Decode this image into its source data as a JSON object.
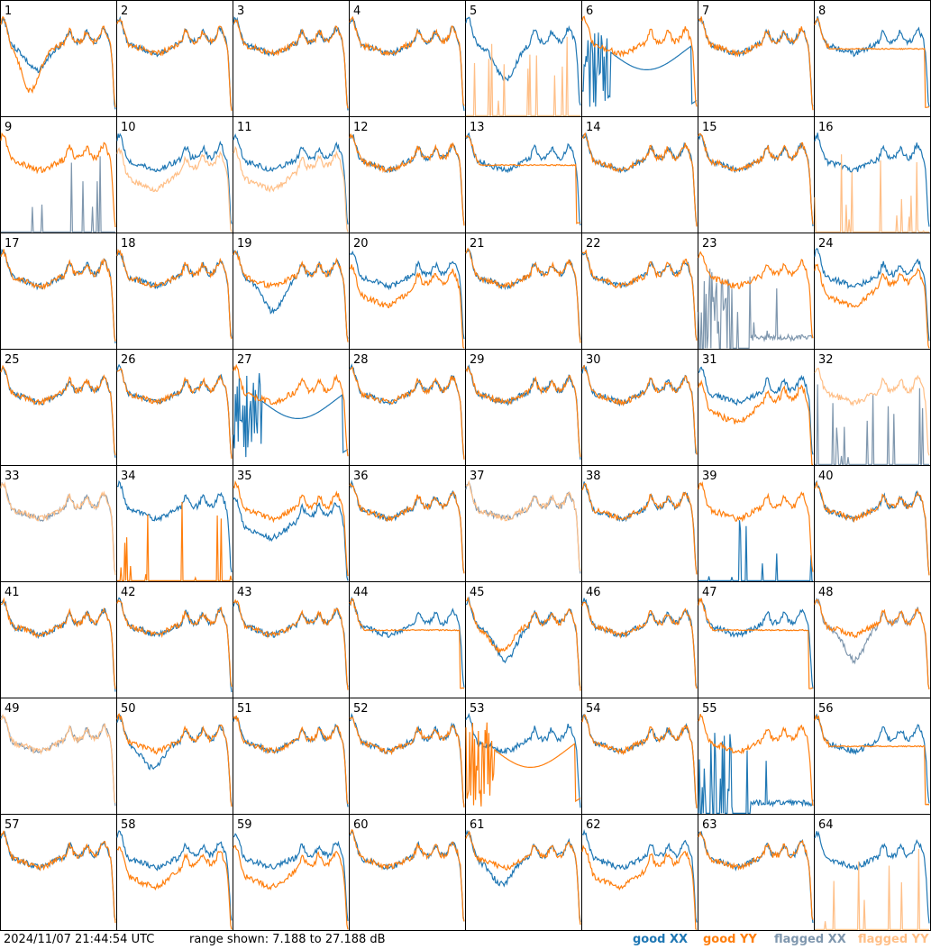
{
  "footer": {
    "timestamp": "2024/11/07 21:44:54 UTC",
    "range_text": "range shown: 7.188 to 27.188 dB"
  },
  "legend": [
    {
      "label": "good XX",
      "color": "#1f77b4"
    },
    {
      "label": "good YY",
      "color": "#ff7f0e"
    },
    {
      "label": "flagged XX",
      "color": "#7f97ae"
    },
    {
      "label": "flagged YY",
      "color": "#ffbf87"
    }
  ],
  "chart_data": {
    "type": "line",
    "grid": "8x8 small multiples",
    "ylim": [
      7.188,
      27.188
    ],
    "yunit": "dB",
    "panels": [
      {
        "id": "1",
        "xx": "good",
        "yy": "good",
        "xx_shape": "dip_shallow",
        "yy_shape": "dip"
      },
      {
        "id": "2",
        "xx": "good",
        "yy": "good",
        "xx_shape": "normal",
        "yy_shape": "normal"
      },
      {
        "id": "3",
        "xx": "good",
        "yy": "good",
        "xx_shape": "normal",
        "yy_shape": "normal"
      },
      {
        "id": "4",
        "xx": "good",
        "yy": "good",
        "xx_shape": "normal",
        "yy_shape": "normal"
      },
      {
        "id": "5",
        "xx": "good",
        "yy": "flagged",
        "xx_shape": "dip_mid",
        "yy_shape": "spikes"
      },
      {
        "id": "6",
        "xx": "good",
        "yy": "good",
        "xx_shape": "dead",
        "yy_shape": "normal"
      },
      {
        "id": "7",
        "xx": "good",
        "yy": "good",
        "xx_shape": "normal",
        "yy_shape": "normal"
      },
      {
        "id": "8",
        "xx": "good",
        "yy": "good",
        "xx_shape": "normal",
        "yy_shape": "flat"
      },
      {
        "id": "9",
        "xx": "flagged",
        "yy": "good",
        "xx_shape": "spikes",
        "yy_shape": "normal"
      },
      {
        "id": "10",
        "xx": "good",
        "yy": "flagged",
        "xx_shape": "normal",
        "yy_shape": "low"
      },
      {
        "id": "11",
        "xx": "good",
        "yy": "flagged",
        "xx_shape": "normal",
        "yy_shape": "low"
      },
      {
        "id": "12",
        "xx": "good",
        "yy": "good",
        "xx_shape": "normal",
        "yy_shape": "normal"
      },
      {
        "id": "13",
        "xx": "good",
        "yy": "good",
        "xx_shape": "normal",
        "yy_shape": "flat"
      },
      {
        "id": "14",
        "xx": "good",
        "yy": "good",
        "xx_shape": "normal",
        "yy_shape": "normal"
      },
      {
        "id": "15",
        "xx": "good",
        "yy": "good",
        "xx_shape": "normal",
        "yy_shape": "normal"
      },
      {
        "id": "16",
        "xx": "good",
        "yy": "flagged",
        "xx_shape": "normal",
        "yy_shape": "spikes"
      },
      {
        "id": "17",
        "xx": "good",
        "yy": "good",
        "xx_shape": "normal",
        "yy_shape": "normal"
      },
      {
        "id": "18",
        "xx": "good",
        "yy": "good",
        "xx_shape": "normal",
        "yy_shape": "normal"
      },
      {
        "id": "19",
        "xx": "good",
        "yy": "good",
        "xx_shape": "dip_mid",
        "yy_shape": "normal"
      },
      {
        "id": "20",
        "xx": "good",
        "yy": "good",
        "xx_shape": "normal",
        "yy_shape": "low"
      },
      {
        "id": "21",
        "xx": "good",
        "yy": "good",
        "xx_shape": "normal",
        "yy_shape": "normal"
      },
      {
        "id": "22",
        "xx": "good",
        "yy": "good",
        "xx_shape": "normal",
        "yy_shape": "normal"
      },
      {
        "id": "23",
        "xx": "flagged",
        "yy": "good",
        "xx_shape": "spikes_tail",
        "yy_shape": "normal"
      },
      {
        "id": "24",
        "xx": "good",
        "yy": "good",
        "xx_shape": "normal",
        "yy_shape": "low"
      },
      {
        "id": "25",
        "xx": "good",
        "yy": "good",
        "xx_shape": "normal",
        "yy_shape": "normal"
      },
      {
        "id": "26",
        "xx": "good",
        "yy": "good",
        "xx_shape": "normal",
        "yy_shape": "normal"
      },
      {
        "id": "27",
        "xx": "good",
        "yy": "good",
        "xx_shape": "dead",
        "yy_shape": "normal"
      },
      {
        "id": "28",
        "xx": "good",
        "yy": "good",
        "xx_shape": "normal",
        "yy_shape": "normal"
      },
      {
        "id": "29",
        "xx": "good",
        "yy": "good",
        "xx_shape": "normal",
        "yy_shape": "normal"
      },
      {
        "id": "30",
        "xx": "good",
        "yy": "good",
        "xx_shape": "normal",
        "yy_shape": "normal"
      },
      {
        "id": "31",
        "xx": "good",
        "yy": "good",
        "xx_shape": "normal",
        "yy_shape": "low"
      },
      {
        "id": "32",
        "xx": "flagged",
        "yy": "flagged",
        "xx_shape": "spikes",
        "yy_shape": "normal"
      },
      {
        "id": "33",
        "xx": "flagged",
        "yy": "flagged",
        "xx_shape": "normal",
        "yy_shape": "normal"
      },
      {
        "id": "34",
        "xx": "good",
        "yy": "good",
        "xx_shape": "normal",
        "yy_shape": "spikes"
      },
      {
        "id": "35",
        "xx": "good",
        "yy": "good",
        "xx_shape": "low",
        "yy_shape": "normal"
      },
      {
        "id": "36",
        "xx": "good",
        "yy": "good",
        "xx_shape": "normal",
        "yy_shape": "normal"
      },
      {
        "id": "37",
        "xx": "flagged",
        "yy": "flagged",
        "xx_shape": "normal",
        "yy_shape": "normal"
      },
      {
        "id": "38",
        "xx": "good",
        "yy": "good",
        "xx_shape": "normal",
        "yy_shape": "normal"
      },
      {
        "id": "39",
        "xx": "good",
        "yy": "good",
        "xx_shape": "spikes",
        "yy_shape": "normal"
      },
      {
        "id": "40",
        "xx": "good",
        "yy": "good",
        "xx_shape": "normal",
        "yy_shape": "normal"
      },
      {
        "id": "41",
        "xx": "good",
        "yy": "good",
        "xx_shape": "normal",
        "yy_shape": "normal"
      },
      {
        "id": "42",
        "xx": "good",
        "yy": "good",
        "xx_shape": "normal",
        "yy_shape": "normal"
      },
      {
        "id": "43",
        "xx": "good",
        "yy": "good",
        "xx_shape": "normal",
        "yy_shape": "normal"
      },
      {
        "id": "44",
        "xx": "good",
        "yy": "good",
        "xx_shape": "normal",
        "yy_shape": "flat"
      },
      {
        "id": "45",
        "xx": "good",
        "yy": "good",
        "xx_shape": "dip_mid",
        "yy_shape": "dip_shallow"
      },
      {
        "id": "46",
        "xx": "good",
        "yy": "good",
        "xx_shape": "normal",
        "yy_shape": "normal"
      },
      {
        "id": "47",
        "xx": "good",
        "yy": "good",
        "xx_shape": "normal",
        "yy_shape": "flat"
      },
      {
        "id": "48",
        "xx": "flagged",
        "yy": "good",
        "xx_shape": "dip_mid",
        "yy_shape": "normal"
      },
      {
        "id": "49",
        "xx": "flagged",
        "yy": "flagged",
        "xx_shape": "normal",
        "yy_shape": "normal"
      },
      {
        "id": "50",
        "xx": "good",
        "yy": "good",
        "xx_shape": "dip_shallow",
        "yy_shape": "normal"
      },
      {
        "id": "51",
        "xx": "good",
        "yy": "good",
        "xx_shape": "normal",
        "yy_shape": "normal"
      },
      {
        "id": "52",
        "xx": "good",
        "yy": "good",
        "xx_shape": "normal",
        "yy_shape": "normal"
      },
      {
        "id": "53",
        "xx": "good",
        "yy": "good",
        "xx_shape": "normal",
        "yy_shape": "dead"
      },
      {
        "id": "54",
        "xx": "good",
        "yy": "good",
        "xx_shape": "normal",
        "yy_shape": "normal"
      },
      {
        "id": "55",
        "xx": "good",
        "yy": "good",
        "xx_shape": "spikes_tail",
        "yy_shape": "normal"
      },
      {
        "id": "56",
        "xx": "good",
        "yy": "good",
        "xx_shape": "normal",
        "yy_shape": "flat"
      },
      {
        "id": "57",
        "xx": "good",
        "yy": "good",
        "xx_shape": "normal",
        "yy_shape": "normal"
      },
      {
        "id": "58",
        "xx": "good",
        "yy": "good",
        "xx_shape": "normal",
        "yy_shape": "low"
      },
      {
        "id": "59",
        "xx": "good",
        "yy": "good",
        "xx_shape": "normal",
        "yy_shape": "low"
      },
      {
        "id": "60",
        "xx": "good",
        "yy": "good",
        "xx_shape": "normal",
        "yy_shape": "normal"
      },
      {
        "id": "61",
        "xx": "good",
        "yy": "good",
        "xx_shape": "dip_shallow",
        "yy_shape": "normal"
      },
      {
        "id": "62",
        "xx": "good",
        "yy": "good",
        "xx_shape": "normal",
        "yy_shape": "low"
      },
      {
        "id": "63",
        "xx": "good",
        "yy": "good",
        "xx_shape": "normal",
        "yy_shape": "normal"
      },
      {
        "id": "64",
        "xx": "good",
        "yy": "flagged",
        "xx_shape": "normal",
        "yy_shape": "spikes"
      }
    ]
  }
}
